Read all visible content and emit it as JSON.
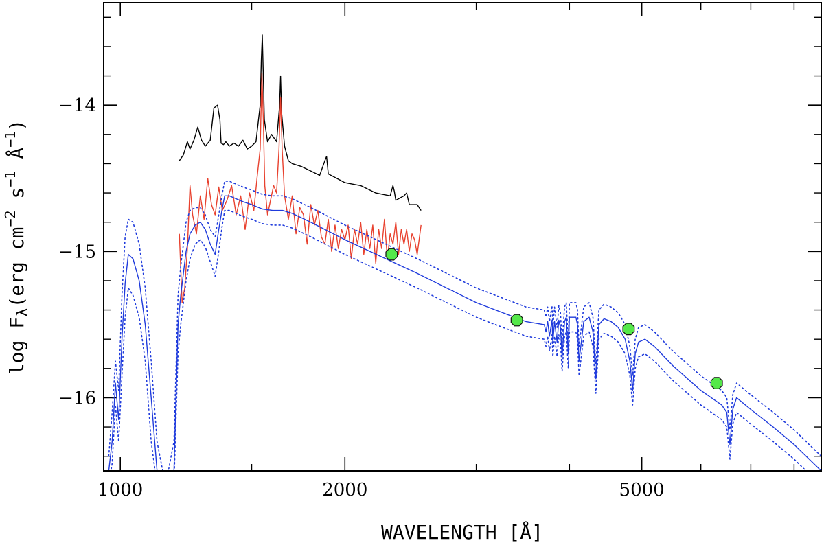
{
  "chart_data": {
    "type": "line",
    "title": "",
    "xlabel": "WAVELENGTH [Å]",
    "ylabel_main": "log F",
    "ylabel_sub": "λ",
    "ylabel_units": "(erg cm",
    "ylabel_exp1": "−2",
    "ylabel_mid": " s",
    "ylabel_exp2": "−1",
    "ylabel_end": " Å",
    "ylabel_exp3": "−1",
    "ylabel_close": ")",
    "xscale": "log",
    "xlim": [
      950,
      8700
    ],
    "ylim": [
      -16.5,
      -13.3
    ],
    "x_tick_labels": [
      {
        "value": 1000,
        "label": "1000"
      },
      {
        "value": 2000,
        "label": "2000"
      },
      {
        "value": 5000,
        "label": "5000"
      }
    ],
    "x_minor_ticks": [
      1500,
      3000,
      4000,
      6000,
      7000,
      8000
    ],
    "y_tick_labels": [
      {
        "value": -14,
        "label": "−14"
      },
      {
        "value": -15,
        "label": "−15"
      },
      {
        "value": -16,
        "label": "−16"
      }
    ],
    "y_minor_step": 0.2,
    "colors": {
      "observed_black": "#000000",
      "observed_red": "#e8412e",
      "model": "#1f3bdc",
      "photometry": "#55e84a",
      "photometry_edge": "#111111"
    },
    "series": [
      {
        "name": "observed-spectrum-black",
        "color": "#000000",
        "style": "solid",
        "x": [
          1200,
          1215,
          1230,
          1240,
          1255,
          1270,
          1285,
          1300,
          1320,
          1335,
          1350,
          1360,
          1365,
          1375,
          1385,
          1400,
          1420,
          1440,
          1460,
          1480,
          1500,
          1520,
          1540,
          1545,
          1550,
          1555,
          1560,
          1575,
          1595,
          1620,
          1635,
          1640,
          1645,
          1660,
          1680,
          1700,
          1750,
          1800,
          1850,
          1880,
          1890,
          1900,
          1950,
          2000,
          2100,
          2200,
          2300,
          2320,
          2330,
          2340,
          2400,
          2420,
          2440,
          2500,
          2530
        ],
        "y": [
          -14.38,
          -14.34,
          -14.25,
          -14.3,
          -14.24,
          -14.15,
          -14.24,
          -14.28,
          -14.24,
          -14.02,
          -14.0,
          -14.1,
          -14.26,
          -14.27,
          -14.25,
          -14.28,
          -14.26,
          -14.28,
          -14.24,
          -14.3,
          -14.28,
          -14.25,
          -14.0,
          -13.7,
          -13.52,
          -13.8,
          -14.1,
          -14.25,
          -14.2,
          -14.25,
          -14.0,
          -13.8,
          -14.05,
          -14.28,
          -14.38,
          -14.4,
          -14.42,
          -14.45,
          -14.48,
          -14.38,
          -14.35,
          -14.47,
          -14.5,
          -14.53,
          -14.55,
          -14.6,
          -14.62,
          -14.55,
          -14.59,
          -14.65,
          -14.62,
          -14.6,
          -14.68,
          -14.68,
          -14.72
        ]
      },
      {
        "name": "observed-spectrum-red",
        "color": "#e8412e",
        "style": "solid",
        "x": [
          1200,
          1210,
          1220,
          1230,
          1240,
          1250,
          1265,
          1280,
          1295,
          1310,
          1325,
          1340,
          1355,
          1370,
          1390,
          1410,
          1430,
          1450,
          1470,
          1490,
          1510,
          1525,
          1540,
          1548,
          1555,
          1562,
          1575,
          1590,
          1605,
          1620,
          1632,
          1640,
          1648,
          1660,
          1680,
          1700,
          1720,
          1740,
          1760,
          1780,
          1800,
          1820,
          1840,
          1860,
          1880,
          1900,
          1920,
          1940,
          1960,
          1980,
          2000,
          2020,
          2040,
          2060,
          2080,
          2100,
          2120,
          2140,
          2160,
          2180,
          2200,
          2220,
          2240,
          2260,
          2280,
          2300,
          2320,
          2340,
          2360,
          2380,
          2400,
          2420,
          2440,
          2460,
          2480,
          2500,
          2530
        ],
        "y": [
          -14.88,
          -15.35,
          -15.25,
          -14.98,
          -14.55,
          -14.75,
          -14.88,
          -14.62,
          -14.78,
          -14.5,
          -14.68,
          -14.75,
          -14.56,
          -14.72,
          -14.65,
          -14.55,
          -14.75,
          -14.62,
          -14.85,
          -14.6,
          -14.72,
          -14.5,
          -14.3,
          -13.78,
          -14.1,
          -14.55,
          -14.75,
          -14.65,
          -14.55,
          -14.6,
          -14.3,
          -13.95,
          -14.3,
          -14.62,
          -14.78,
          -14.62,
          -14.88,
          -14.7,
          -14.75,
          -14.95,
          -14.68,
          -14.82,
          -14.72,
          -14.9,
          -14.95,
          -14.78,
          -15.0,
          -14.82,
          -14.98,
          -14.85,
          -14.92,
          -14.82,
          -15.05,
          -14.85,
          -14.95,
          -14.8,
          -15.02,
          -14.85,
          -14.98,
          -14.82,
          -15.08,
          -14.85,
          -14.98,
          -14.78,
          -15.05,
          -14.88,
          -14.95,
          -14.8,
          -15.02,
          -14.85,
          -14.95,
          -14.85,
          -15.0,
          -14.88,
          -14.92,
          -15.02,
          -14.82
        ]
      },
      {
        "name": "model-spectrum",
        "color": "#1f3bdc",
        "style": "solid",
        "x": [
          965,
          975,
          985,
          995,
          1005,
          1015,
          1025,
          1040,
          1060,
          1080,
          1100,
          1120,
          1140,
          1160,
          1180,
          1195,
          1205,
          1215,
          1225,
          1240,
          1260,
          1280,
          1300,
          1320,
          1340,
          1355,
          1368,
          1380,
          1400,
          1430,
          1460,
          1500,
          1550,
          1600,
          1650,
          1700,
          1800,
          2000,
          2500,
          3000,
          3500,
          3700,
          3720,
          3740,
          3760,
          3790,
          3800,
          3820,
          3850,
          3870,
          3890,
          3910,
          3940,
          3960,
          3970,
          3985,
          4000,
          4040,
          4080,
          4100,
          4120,
          4180,
          4250,
          4300,
          4340,
          4380,
          4450,
          4550,
          4650,
          4750,
          4820,
          4861,
          4900,
          4950,
          5050,
          5200,
          5500,
          6000,
          6400,
          6500,
          6563,
          6620,
          6700,
          7000,
          7500,
          8000,
          8700
        ],
        "y": [
          -16.5,
          -16.3,
          -15.9,
          -16.15,
          -15.6,
          -15.22,
          -15.02,
          -15.05,
          -15.2,
          -15.5,
          -16.0,
          -16.5,
          -16.6,
          -16.6,
          -16.5,
          -15.5,
          -15.3,
          -15.15,
          -15.0,
          -14.88,
          -14.82,
          -14.8,
          -14.85,
          -14.95,
          -15.02,
          -14.85,
          -14.72,
          -14.62,
          -14.62,
          -14.64,
          -14.66,
          -14.68,
          -14.71,
          -14.72,
          -14.72,
          -14.74,
          -14.8,
          -14.92,
          -15.15,
          -15.35,
          -15.48,
          -15.5,
          -15.55,
          -15.48,
          -15.58,
          -15.47,
          -15.62,
          -15.48,
          -15.62,
          -15.47,
          -15.52,
          -15.72,
          -15.48,
          -15.45,
          -15.55,
          -15.7,
          -15.45,
          -15.45,
          -15.45,
          -15.5,
          -15.75,
          -15.48,
          -15.45,
          -15.55,
          -15.87,
          -15.5,
          -15.46,
          -15.48,
          -15.52,
          -15.6,
          -15.75,
          -15.95,
          -15.7,
          -15.62,
          -15.6,
          -15.65,
          -15.78,
          -15.95,
          -16.05,
          -16.1,
          -16.32,
          -16.08,
          -16.0,
          -16.08,
          -16.2,
          -16.32,
          -16.5
        ]
      },
      {
        "name": "model-spectrum-upper-bound",
        "color": "#1f3bdc",
        "style": "dotted",
        "x": [
          965,
          975,
          985,
          995,
          1005,
          1015,
          1025,
          1040,
          1060,
          1080,
          1100,
          1120,
          1140,
          1160,
          1180,
          1195,
          1205,
          1215,
          1225,
          1240,
          1260,
          1280,
          1300,
          1320,
          1340,
          1355,
          1368,
          1380,
          1400,
          1430,
          1460,
          1500,
          1550,
          1600,
          1650,
          1700,
          1800,
          2000,
          2500,
          3000,
          3500,
          3700,
          3720,
          3740,
          3760,
          3790,
          3800,
          3820,
          3850,
          3870,
          3890,
          3910,
          3940,
          3960,
          3970,
          3985,
          4000,
          4040,
          4080,
          4100,
          4120,
          4180,
          4250,
          4300,
          4340,
          4380,
          4450,
          4550,
          4650,
          4750,
          4820,
          4861,
          4900,
          4950,
          5050,
          5200,
          5500,
          6000,
          6400,
          6500,
          6563,
          6620,
          6700,
          7000,
          7500,
          8000,
          8700
        ],
        "y": [
          -16.4,
          -16.1,
          -15.75,
          -15.95,
          -15.3,
          -14.9,
          -14.78,
          -14.8,
          -14.95,
          -15.25,
          -15.75,
          -16.3,
          -16.5,
          -16.5,
          -16.3,
          -15.3,
          -15.1,
          -14.95,
          -14.8,
          -14.72,
          -14.7,
          -14.7,
          -14.75,
          -14.85,
          -14.9,
          -14.75,
          -14.62,
          -14.52,
          -14.52,
          -14.54,
          -14.56,
          -14.58,
          -14.61,
          -14.62,
          -14.62,
          -14.64,
          -14.7,
          -14.82,
          -15.05,
          -15.25,
          -15.38,
          -15.4,
          -15.45,
          -15.38,
          -15.48,
          -15.37,
          -15.52,
          -15.38,
          -15.52,
          -15.37,
          -15.42,
          -15.62,
          -15.38,
          -15.35,
          -15.45,
          -15.6,
          -15.35,
          -15.35,
          -15.35,
          -15.4,
          -15.65,
          -15.38,
          -15.35,
          -15.45,
          -15.77,
          -15.4,
          -15.36,
          -15.38,
          -15.42,
          -15.5,
          -15.65,
          -15.85,
          -15.6,
          -15.52,
          -15.5,
          -15.55,
          -15.68,
          -15.85,
          -15.95,
          -16.0,
          -16.22,
          -15.98,
          -15.9,
          -15.98,
          -16.1,
          -16.22,
          -16.4
        ]
      },
      {
        "name": "model-spectrum-lower-bound",
        "color": "#1f3bdc",
        "style": "dotted",
        "x": [
          965,
          975,
          985,
          995,
          1005,
          1015,
          1025,
          1040,
          1060,
          1080,
          1100,
          1120,
          1140,
          1160,
          1180,
          1195,
          1205,
          1215,
          1225,
          1240,
          1260,
          1280,
          1300,
          1320,
          1340,
          1355,
          1368,
          1380,
          1400,
          1430,
          1460,
          1500,
          1550,
          1600,
          1650,
          1700,
          1800,
          2000,
          2500,
          3000,
          3500,
          3700,
          3720,
          3740,
          3760,
          3790,
          3800,
          3820,
          3850,
          3870,
          3890,
          3910,
          3940,
          3960,
          3970,
          3985,
          4000,
          4040,
          4080,
          4100,
          4120,
          4180,
          4250,
          4300,
          4340,
          4380,
          4450,
          4550,
          4650,
          4750,
          4820,
          4861,
          4900,
          4950,
          5050,
          5200,
          5500,
          6000,
          6400,
          6500,
          6563,
          6620,
          6700,
          7000,
          7500,
          8000,
          8700
        ],
        "y": [
          -16.6,
          -16.45,
          -16.05,
          -16.3,
          -15.85,
          -15.45,
          -15.25,
          -15.3,
          -15.45,
          -15.75,
          -16.3,
          -16.6,
          -16.6,
          -16.6,
          -16.6,
          -15.7,
          -15.5,
          -15.35,
          -15.2,
          -15.05,
          -14.95,
          -14.92,
          -14.97,
          -15.07,
          -15.17,
          -15.0,
          -14.84,
          -14.72,
          -14.72,
          -14.74,
          -14.76,
          -14.78,
          -14.81,
          -14.82,
          -14.82,
          -14.84,
          -14.9,
          -15.02,
          -15.25,
          -15.45,
          -15.58,
          -15.6,
          -15.65,
          -15.58,
          -15.68,
          -15.57,
          -15.72,
          -15.58,
          -15.72,
          -15.57,
          -15.62,
          -15.82,
          -15.58,
          -15.55,
          -15.65,
          -15.8,
          -15.55,
          -15.55,
          -15.55,
          -15.6,
          -15.85,
          -15.58,
          -15.55,
          -15.65,
          -15.97,
          -15.6,
          -15.56,
          -15.58,
          -15.62,
          -15.7,
          -15.85,
          -16.05,
          -15.8,
          -15.72,
          -15.7,
          -15.75,
          -15.88,
          -16.05,
          -16.15,
          -16.2,
          -16.42,
          -16.18,
          -16.1,
          -16.18,
          -16.3,
          -16.42,
          -16.6
        ]
      }
    ],
    "points": {
      "name": "photometry",
      "color": "#55e84a",
      "x": [
        2310,
        3400,
        4800,
        6300
      ],
      "y": [
        -15.02,
        -15.47,
        -15.53,
        -15.9
      ]
    }
  }
}
